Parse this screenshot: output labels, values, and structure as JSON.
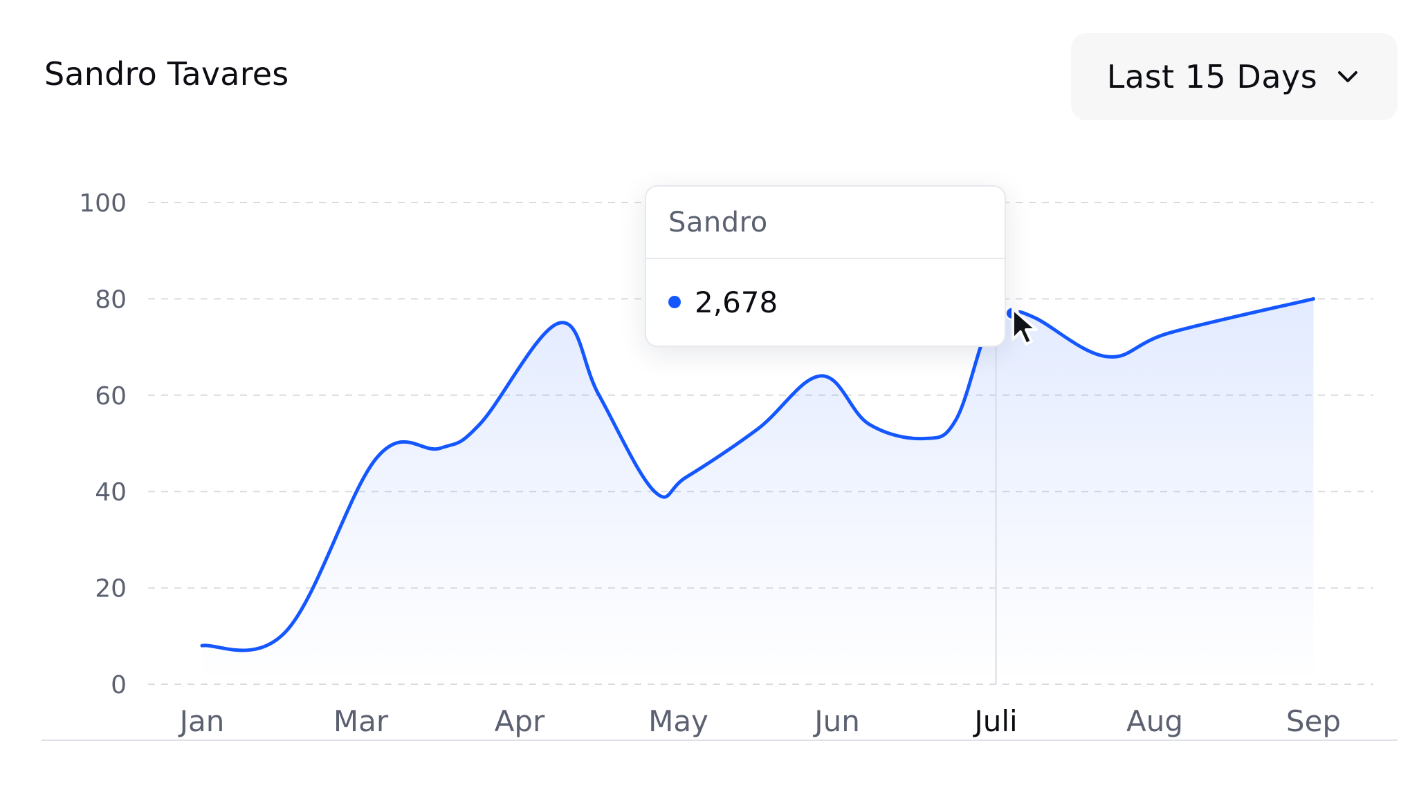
{
  "header": {
    "title": "Sandro Tavares",
    "range_label": "Last 15 Days"
  },
  "colors": {
    "line": "#1557ff",
    "area": "#1557ff",
    "grid": "#d9dbe0",
    "axis_text": "#5b6170",
    "active_tick": "#0b0d12"
  },
  "tooltip": {
    "series": "Sandro",
    "value": "2,678"
  },
  "chart_data": {
    "type": "area",
    "categories": [
      "Jan",
      "Mar",
      "Apr",
      "May",
      "Jun",
      "Juli",
      "Aug",
      "Sep"
    ],
    "active_category": "Juli",
    "y_ticks": [
      "0",
      "20",
      "40",
      "60",
      "80",
      "100"
    ],
    "ylim": [
      0,
      100
    ],
    "grid": "dashed horizontal",
    "series": [
      {
        "points": [
          {
            "x": 0.0,
            "y": 8
          },
          {
            "x": 0.53,
            "y": 11
          },
          {
            "x": 1.1,
            "y": 47
          },
          {
            "x": 1.5,
            "y": 49
          },
          {
            "x": 1.75,
            "y": 54
          },
          {
            "x": 2.25,
            "y": 75
          },
          {
            "x": 2.5,
            "y": 60
          },
          {
            "x": 2.85,
            "y": 40
          },
          {
            "x": 3.05,
            "y": 43
          },
          {
            "x": 3.5,
            "y": 53
          },
          {
            "x": 3.9,
            "y": 64
          },
          {
            "x": 4.2,
            "y": 54
          },
          {
            "x": 4.55,
            "y": 51
          },
          {
            "x": 4.75,
            "y": 55
          },
          {
            "x": 4.95,
            "y": 74
          },
          {
            "x": 5.1,
            "y": 77
          },
          {
            "x": 5.25,
            "y": 76
          },
          {
            "x": 5.7,
            "y": 68
          },
          {
            "x": 6.1,
            "y": 73
          },
          {
            "x": 7.0,
            "y": 80
          }
        ]
      }
    ]
  }
}
